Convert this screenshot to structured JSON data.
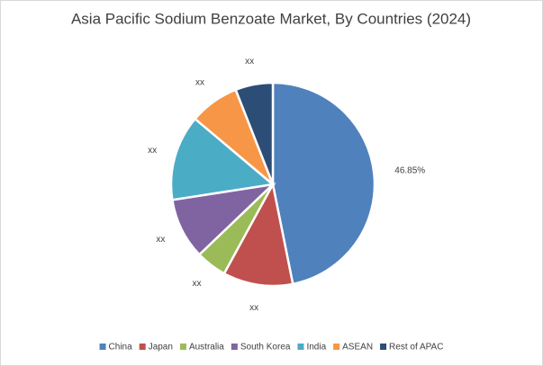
{
  "chart_data": {
    "type": "pie",
    "title": "Asia Pacific Sodium Benzoate Market, By Countries (2024)",
    "categories": [
      "China",
      "Japan",
      "Australia",
      "South Korea",
      "India",
      "ASEAN",
      "Rest of APAC"
    ],
    "values": [
      46.85,
      11.1,
      4.9,
      9.7,
      13.6,
      7.9,
      5.95
    ],
    "value_labels": [
      "46.85%",
      "xx",
      "xx",
      "xx",
      "xx",
      "xx",
      "xx"
    ],
    "colors": [
      "#4f81bd",
      "#c0504d",
      "#9bbb59",
      "#8064a2",
      "#4bacc6",
      "#f79646",
      "#2c4d75"
    ],
    "legend": "bottom"
  }
}
